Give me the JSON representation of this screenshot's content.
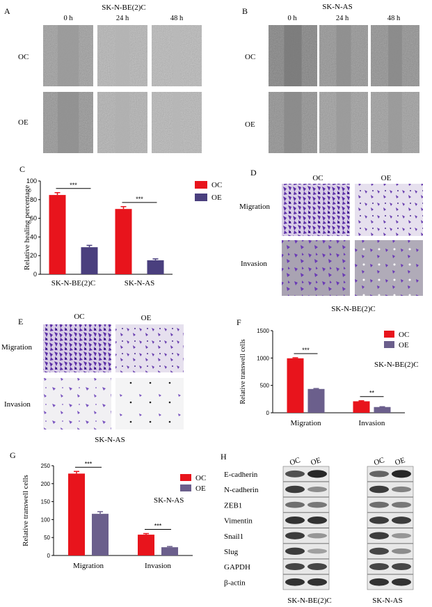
{
  "colors": {
    "oc": "#e8141c",
    "oe": "#4a3f7e",
    "oe_grey": "#6b5f8c",
    "stain": "#6a40b0"
  },
  "panel_a": {
    "letter": "A",
    "title": "SK-N-BE(2)C",
    "columns": [
      "0 h",
      "24 h",
      "48 h"
    ],
    "rows": [
      "OC",
      "OE"
    ]
  },
  "panel_b": {
    "letter": "B",
    "title": "SK-N-AS",
    "columns": [
      "0 h",
      "24 h",
      "48 h"
    ],
    "rows": [
      "OC",
      "OE"
    ]
  },
  "panel_d": {
    "letter": "D",
    "columns": [
      "OC",
      "OE"
    ],
    "rows": [
      "Migration",
      "Invasion"
    ],
    "caption": "SK-N-BE(2)C"
  },
  "panel_e": {
    "letter": "E",
    "columns": [
      "OC",
      "OE"
    ],
    "rows": [
      "Migration",
      "Invasion"
    ],
    "caption": "SK-N-AS"
  },
  "panel_h": {
    "letter": "H",
    "proteins": [
      "E-cadherin",
      "N-cadherin",
      "ZEB1",
      "Vimentin",
      "Snail1",
      "Slug",
      "GAPDH",
      "β-actin"
    ],
    "lanes": [
      "OC",
      "OE"
    ],
    "blots": [
      {
        "caption": "SK-N-BE(2)C",
        "intensity": [
          [
            0.75,
            0.95
          ],
          [
            0.85,
            0.45
          ],
          [
            0.6,
            0.55
          ],
          [
            0.9,
            0.9
          ],
          [
            0.85,
            0.4
          ],
          [
            0.85,
            0.35
          ],
          [
            0.8,
            0.8
          ],
          [
            0.9,
            0.9
          ]
        ]
      },
      {
        "caption": "SK-N-AS",
        "intensity": [
          [
            0.65,
            0.95
          ],
          [
            0.85,
            0.5
          ],
          [
            0.6,
            0.55
          ],
          [
            0.85,
            0.85
          ],
          [
            0.85,
            0.4
          ],
          [
            0.8,
            0.45
          ],
          [
            0.8,
            0.8
          ],
          [
            0.9,
            0.9
          ]
        ]
      }
    ]
  },
  "chart_data": [
    {
      "type": "bar",
      "panel": "C",
      "categories": [
        "SK-N-BE(2)C",
        "SK-N-AS"
      ],
      "series": [
        {
          "name": "OC",
          "values": [
            85,
            70
          ],
          "errors": [
            2.5,
            2.5
          ]
        },
        {
          "name": "OE",
          "values": [
            29,
            15
          ],
          "errors": [
            2,
            1.5
          ]
        }
      ],
      "ylabel": "Relative healing percentage",
      "ylim": [
        0,
        100
      ],
      "yticks": [
        0,
        20,
        40,
        60,
        80,
        100
      ],
      "significance": [
        "***",
        "***"
      ],
      "legend": "top-right"
    },
    {
      "type": "bar",
      "panel": "F",
      "categories": [
        "Migration",
        "Invasion"
      ],
      "series": [
        {
          "name": "OC",
          "values": [
            995,
            210
          ],
          "errors": [
            10,
            10
          ]
        },
        {
          "name": "OE",
          "values": [
            435,
            105
          ],
          "errors": [
            8,
            6
          ]
        }
      ],
      "ylabel": "Relative transwell cells",
      "ylim": [
        0,
        1500
      ],
      "yticks": [
        0,
        500,
        1000,
        1500
      ],
      "significance": [
        "***",
        "**"
      ],
      "annotation": "SK-N-BE(2)C",
      "legend": "top-right"
    },
    {
      "type": "bar",
      "panel": "G",
      "categories": [
        "Migration",
        "Invasion"
      ],
      "series": [
        {
          "name": "OC",
          "values": [
            228,
            58
          ],
          "errors": [
            6,
            3
          ]
        },
        {
          "name": "OE",
          "values": [
            116,
            23
          ],
          "errors": [
            6,
            2
          ]
        }
      ],
      "ylabel": "Relative transwell cells",
      "ylim": [
        0,
        250
      ],
      "yticks": [
        0,
        50,
        100,
        150,
        200,
        250
      ],
      "significance": [
        "***",
        "***"
      ],
      "annotation": "SK-N-AS",
      "legend": "top-right"
    }
  ]
}
